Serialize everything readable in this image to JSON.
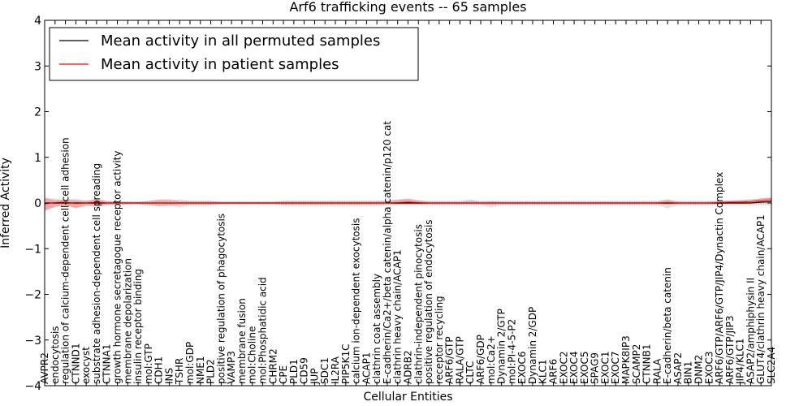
{
  "chart_data": {
    "type": "line",
    "title": "Arf6 trafficking events -- 65 samples",
    "xlabel": "Cellular Entities",
    "ylabel": "Inferred Activity",
    "ylim": [
      -4,
      4
    ],
    "yticks": [
      -4,
      -3,
      -2,
      -1,
      0,
      1,
      2,
      3,
      4
    ],
    "grid": false,
    "legend_position": "top-left",
    "categories": [
      "AVPR2",
      "endocytosis",
      "regulation of calcium-dependent cell-cell adhesion",
      "CTNND1",
      "exocyst",
      "substrate adhesion-dependent cell spreading",
      "CTNNA1",
      "growth hormone secretagogue receptor activity",
      "membrane depolarization",
      "insulin receptor binding",
      "mol:GTP",
      "CDH1",
      "INS",
      "TSHR",
      "mol:GDP",
      "NME1",
      "PLD2",
      "positive regulation of phagocytosis",
      "VAMP3",
      "membrane fusion",
      "mol:Choline",
      "mol:Phosphatidic acid",
      "CHRM2",
      "CPE",
      "PLD1",
      "CD59",
      "JUP",
      "SDC1",
      "IL2RA",
      "PIP5K1C",
      "calcium ion-dependent exocytosis",
      "ACAP1",
      "clathrin coat assembly",
      "E-cadherin/Ca2+/beta catenin/alpha catenin/p120 cat",
      "clathrin heavy chain/ACAP1",
      "ADRB2",
      "clathrin-independent pinocytosis",
      "positive regulation of endocytosis",
      "receptor recycling",
      "ARF6/GTP",
      "RALA/GTP",
      "CLTC",
      "ARF6/GDP",
      "mol:Ca2+",
      "Dynamin 2/GTP",
      "mol:PI-4-5-P2",
      "EXOC6",
      "Dynamin 2/GDP",
      "KLC1",
      "ARF6",
      "EXOC2",
      "EXOC4",
      "EXOC5",
      "SPAG9",
      "EXOC1",
      "EXOC7",
      "MAPK8IP3",
      "SCAMP2",
      "CTNNB1",
      "RALA",
      "E-cadherin/beta catenin",
      "ASAP2",
      "BIN1",
      "DNM2",
      "EXOC3",
      "ARF6/GTP/ARF6/GTP/JIP4/Dynactin Complex",
      "ARF6/GTP/JIP3",
      "JIP4/KLC1",
      "ASAP2/amphiphysin II",
      "GLUT4/clathrin heavy chain/ACAP1",
      "SLC2A4"
    ],
    "series": [
      {
        "name": "Mean activity in all permuted samples",
        "color": "#000000",
        "values": [
          0.0,
          0.0,
          0.0,
          0.0,
          0.0,
          0.0,
          0.0,
          0.0,
          0.0,
          0.0,
          0.0,
          0.0,
          0.0,
          0.0,
          0.0,
          0.0,
          0.0,
          0.0,
          0.0,
          0.0,
          0.0,
          0.0,
          0.0,
          0.0,
          0.0,
          0.0,
          0.0,
          0.0,
          0.0,
          0.0,
          0.0,
          0.0,
          0.0,
          0.0,
          0.0,
          0.0,
          0.0,
          0.0,
          0.0,
          0.0,
          0.0,
          0.0,
          0.0,
          0.0,
          0.0,
          0.0,
          0.0,
          0.0,
          0.0,
          0.0,
          0.0,
          0.0,
          0.0,
          0.0,
          0.0,
          0.0,
          0.0,
          0.0,
          0.0,
          0.0,
          0.0,
          0.0,
          0.0,
          0.0,
          0.0,
          0.0,
          0.0,
          0.0,
          0.0,
          0.02,
          0.03
        ],
        "band_low": [
          -0.15,
          -0.1,
          -0.05,
          -0.1,
          -0.05,
          -0.1,
          -0.05,
          -0.05,
          -0.03,
          -0.03,
          -0.05,
          -0.08,
          -0.05,
          -0.1,
          -0.05,
          -0.05,
          -0.05,
          -0.03,
          -0.03,
          -0.03,
          -0.03,
          -0.03,
          -0.03,
          -0.05,
          -0.05,
          -0.05,
          -0.05,
          -0.05,
          -0.05,
          -0.05,
          -0.05,
          -0.05,
          -0.05,
          -0.05,
          -0.05,
          -0.05,
          -0.05,
          -0.05,
          -0.05,
          -0.05,
          -0.05,
          -0.05,
          -0.05,
          -0.1,
          -0.05,
          -0.05,
          -0.05,
          -0.05,
          -0.05,
          -0.05,
          -0.05,
          -0.05,
          -0.05,
          -0.05,
          -0.05,
          -0.05,
          -0.05,
          -0.05,
          -0.05,
          -0.05,
          -0.12,
          -0.05,
          -0.05,
          -0.05,
          -0.05,
          -0.05,
          -0.05,
          -0.05,
          -0.05,
          -0.05,
          -0.05
        ],
        "band_high": [
          0.1,
          0.1,
          0.05,
          0.1,
          0.05,
          0.1,
          0.05,
          0.05,
          0.03,
          0.03,
          0.05,
          0.06,
          0.05,
          0.08,
          0.05,
          0.05,
          0.05,
          0.03,
          0.03,
          0.03,
          0.03,
          0.03,
          0.03,
          0.05,
          0.05,
          0.05,
          0.05,
          0.05,
          0.05,
          0.05,
          0.05,
          0.05,
          0.05,
          0.05,
          0.08,
          0.08,
          0.05,
          0.05,
          0.05,
          0.05,
          0.05,
          0.08,
          0.05,
          0.05,
          0.05,
          0.05,
          0.05,
          0.05,
          0.05,
          0.05,
          0.05,
          0.05,
          0.05,
          0.05,
          0.05,
          0.05,
          0.05,
          0.05,
          0.05,
          0.05,
          0.08,
          0.05,
          0.05,
          0.05,
          0.05,
          0.06,
          0.06,
          0.07,
          0.08,
          0.1,
          0.12
        ]
      },
      {
        "name": "Mean activity in patient samples",
        "color": "#ff0000",
        "values": [
          -0.02,
          0.01,
          0.02,
          -0.01,
          0.0,
          0.02,
          0.0,
          0.0,
          0.0,
          0.0,
          0.0,
          0.0,
          0.0,
          0.0,
          0.0,
          0.0,
          0.0,
          0.0,
          0.0,
          0.0,
          0.0,
          0.0,
          0.0,
          0.0,
          0.0,
          0.0,
          0.0,
          0.0,
          0.0,
          0.0,
          0.0,
          0.0,
          0.0,
          0.0,
          0.01,
          0.02,
          0.01,
          0.0,
          0.0,
          0.0,
          0.0,
          0.0,
          0.0,
          0.0,
          0.0,
          0.0,
          0.0,
          0.0,
          0.0,
          0.0,
          0.0,
          0.0,
          0.0,
          0.0,
          0.0,
          0.0,
          0.0,
          0.0,
          0.0,
          0.0,
          0.01,
          0.0,
          0.0,
          0.0,
          0.0,
          0.01,
          0.02,
          0.02,
          0.03,
          0.05,
          0.07
        ],
        "band_low": [
          -0.18,
          -0.08,
          -0.05,
          -0.12,
          -0.06,
          -0.06,
          -0.04,
          -0.03,
          -0.03,
          -0.03,
          -0.04,
          -0.06,
          -0.06,
          -0.04,
          -0.04,
          -0.04,
          -0.04,
          -0.03,
          -0.03,
          -0.03,
          -0.03,
          -0.03,
          -0.03,
          -0.04,
          -0.04,
          -0.04,
          -0.04,
          -0.04,
          -0.04,
          -0.04,
          -0.04,
          -0.04,
          -0.04,
          -0.03,
          -0.03,
          -0.03,
          -0.03,
          -0.03,
          -0.03,
          -0.03,
          -0.03,
          -0.03,
          -0.03,
          -0.04,
          -0.03,
          -0.03,
          -0.03,
          -0.03,
          -0.03,
          -0.03,
          -0.03,
          -0.03,
          -0.03,
          -0.03,
          -0.03,
          -0.03,
          -0.03,
          -0.03,
          -0.03,
          -0.03,
          -0.04,
          -0.03,
          -0.03,
          -0.03,
          -0.03,
          -0.02,
          -0.02,
          -0.02,
          -0.01,
          0.0,
          0.02
        ],
        "band_high": [
          0.12,
          0.06,
          0.08,
          0.06,
          0.05,
          0.08,
          0.04,
          0.03,
          0.03,
          0.03,
          0.04,
          0.08,
          0.08,
          0.04,
          0.04,
          0.04,
          0.04,
          0.03,
          0.03,
          0.03,
          0.03,
          0.03,
          0.03,
          0.04,
          0.04,
          0.04,
          0.04,
          0.04,
          0.04,
          0.04,
          0.04,
          0.04,
          0.04,
          0.05,
          0.07,
          0.1,
          0.06,
          0.03,
          0.03,
          0.03,
          0.03,
          0.05,
          0.03,
          0.04,
          0.03,
          0.03,
          0.03,
          0.03,
          0.03,
          0.03,
          0.03,
          0.03,
          0.03,
          0.03,
          0.03,
          0.03,
          0.03,
          0.03,
          0.03,
          0.03,
          0.07,
          0.03,
          0.03,
          0.03,
          0.03,
          0.04,
          0.05,
          0.06,
          0.07,
          0.1,
          0.12
        ]
      }
    ]
  }
}
